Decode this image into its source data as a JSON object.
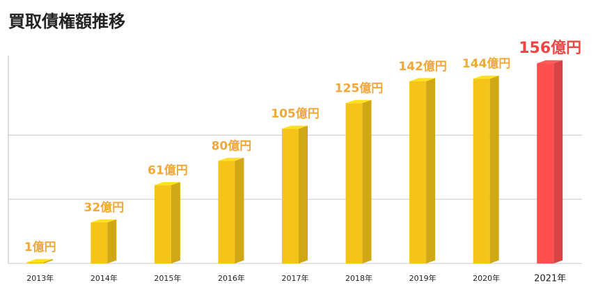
{
  "chart_data": {
    "type": "bar3d",
    "title": "買取債権額推移",
    "categories": [
      "2013年",
      "2014年",
      "2015年",
      "2016年",
      "2017年",
      "2018年",
      "2019年",
      "2020年",
      "2021年"
    ],
    "values": [
      1,
      32,
      61,
      80,
      105,
      125,
      142,
      144,
      156
    ],
    "value_labels": [
      "1億円",
      "32億円",
      "61億円",
      "80億円",
      "105億円",
      "125億円",
      "142億円",
      "144億円",
      "156億円"
    ],
    "colors": [
      "#f5c419",
      "#f5c419",
      "#f5c419",
      "#f5c419",
      "#f5c419",
      "#f5c419",
      "#f5c419",
      "#f5c419",
      "#ff4f4f"
    ],
    "ylim": [
      0,
      162
    ],
    "yticks": [
      0,
      50,
      100
    ],
    "grid": true
  }
}
